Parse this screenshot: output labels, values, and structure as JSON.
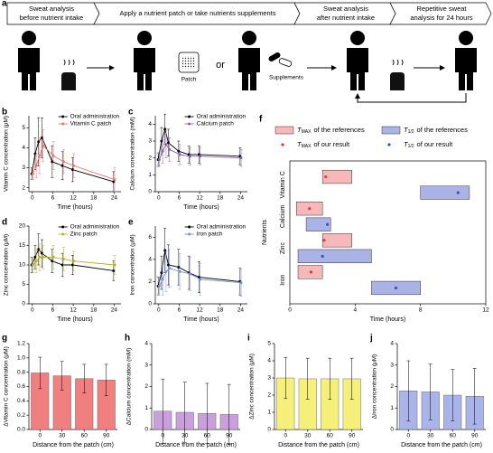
{
  "panel_a": {
    "panel_label": "a",
    "steps": [
      [
        "Sweat analysis",
        "before nutrient intake"
      ],
      [
        "Apply a nutrient patch or take nutrients supplements"
      ],
      [
        "Sweat analysis",
        "after nutrient intake"
      ],
      [
        "Repetitive sweat",
        "analysis for 24 hours"
      ]
    ],
    "patch_label": "Patch",
    "or_label": "or",
    "supplements_label": "Supplements"
  },
  "chart_data": [
    {
      "type": "line",
      "panel_label": "b",
      "xlabel": "Time (hours)",
      "ylabel": "Vitamin C concentration (μM)",
      "x": [
        0,
        1,
        2,
        3,
        6,
        9,
        12,
        24
      ],
      "xlim": [
        -1,
        26
      ],
      "xticks": [
        0,
        6,
        12,
        18,
        24
      ],
      "ylim": [
        1.8,
        5.6
      ],
      "yticks": [
        2,
        3,
        4,
        5
      ],
      "series": [
        {
          "name": "Oral administration",
          "color": "#000000",
          "values": [
            2.7,
            3.7,
            4.3,
            4.5,
            3.3,
            3.1,
            2.9,
            2.3
          ],
          "errors": [
            0.3,
            0.8,
            1.2,
            1.0,
            0.8,
            0.7,
            0.6,
            0.5
          ]
        },
        {
          "name": "Vitamin C patch",
          "color": "#e8746c",
          "values": [
            2.7,
            3.1,
            3.6,
            4.1,
            3.6,
            3.3,
            3.1,
            2.4
          ],
          "errors": [
            0.3,
            0.6,
            0.9,
            0.8,
            0.7,
            0.6,
            0.6,
            0.6
          ]
        }
      ]
    },
    {
      "type": "line",
      "panel_label": "c",
      "xlabel": "Time (hours)",
      "ylabel": "Calcium concentration (mM)",
      "x": [
        0,
        1,
        2,
        3,
        6,
        9,
        12,
        24
      ],
      "xlim": [
        -1,
        26
      ],
      "xticks": [
        0,
        6,
        12,
        18,
        24
      ],
      "ylim": [
        0,
        4.5
      ],
      "yticks": [
        0,
        1,
        2,
        3,
        4
      ],
      "series": [
        {
          "name": "Oral administration",
          "color": "#000000",
          "values": [
            1.9,
            3.0,
            3.7,
            2.9,
            2.4,
            2.2,
            2.2,
            2.1
          ],
          "errors": [
            0.4,
            0.8,
            0.9,
            0.8,
            0.6,
            0.5,
            0.5,
            0.5
          ]
        },
        {
          "name": "Calcium patch",
          "color": "#8a5fb0",
          "values": [
            1.9,
            2.4,
            2.8,
            2.5,
            2.2,
            2.1,
            2.1,
            2.0
          ],
          "errors": [
            0.4,
            0.7,
            0.8,
            0.7,
            0.6,
            0.5,
            0.5,
            0.5
          ]
        }
      ]
    },
    {
      "type": "line",
      "panel_label": "d",
      "xlabel": "Time (hours)",
      "ylabel": "Zinc concentration (μM)",
      "x": [
        0,
        1,
        2,
        3,
        6,
        9,
        12,
        24
      ],
      "xlim": [
        -1,
        26
      ],
      "xticks": [
        0,
        6,
        12,
        18,
        24
      ],
      "ylim": [
        0,
        20
      ],
      "yticks": [
        0,
        5,
        10,
        15,
        20
      ],
      "series": [
        {
          "name": "Oral administration",
          "color": "#000000",
          "values": [
            10,
            12,
            14,
            13,
            11,
            10,
            10,
            8.5
          ],
          "errors": [
            2,
            3,
            4,
            3.5,
            3,
            3,
            2.5,
            2.5
          ]
        },
        {
          "name": "Zinc patch",
          "color": "#b8b020",
          "values": [
            10,
            11,
            12,
            12,
            12,
            11.5,
            11,
            10
          ],
          "errors": [
            2,
            3,
            3.5,
            3,
            3,
            3,
            2.5,
            2.5
          ]
        }
      ]
    },
    {
      "type": "line",
      "panel_label": "e",
      "xlabel": "Time (hours)",
      "ylabel": "Iron concentration (μM)",
      "x": [
        0,
        1,
        2,
        3,
        6,
        9,
        12,
        24
      ],
      "xlim": [
        -1,
        26
      ],
      "xticks": [
        0,
        6,
        12,
        18,
        24
      ],
      "ylim": [
        0,
        7
      ],
      "yticks": [
        0,
        2,
        4,
        6
      ],
      "series": [
        {
          "name": "Oral administration",
          "color": "#000000",
          "values": [
            1.6,
            2.8,
            4.8,
            3.5,
            3.3,
            2.8,
            2.4,
            2.0
          ],
          "errors": [
            0.8,
            1.5,
            2.0,
            1.8,
            1.6,
            1.5,
            1.4,
            1.2
          ]
        },
        {
          "name": "Iron patch",
          "color": "#7b8fd8",
          "values": [
            1.6,
            2.2,
            2.9,
            3.2,
            2.9,
            2.7,
            2.2,
            1.9
          ],
          "errors": [
            0.8,
            1.4,
            1.8,
            1.7,
            1.6,
            1.5,
            1.4,
            1.2
          ]
        }
      ]
    },
    {
      "type": "range",
      "panel_label": "f",
      "xlabel": "Time (hours)",
      "ylabel": "Nutrients",
      "categories": [
        "Vitamin C",
        "Calcium",
        "Zinc",
        "Iron"
      ],
      "xlim": [
        0,
        12
      ],
      "xticks": [
        0,
        4,
        8,
        12
      ],
      "series": [
        {
          "name": {
            "main": "T",
            "sub": "MAX",
            "rest": "of the references"
          },
          "color": "#f6b8b8",
          "starts": [
            2,
            0.4,
            2,
            0.5
          ],
          "ends": [
            3.8,
            2,
            3.8,
            2
          ]
        },
        {
          "name": {
            "main": "T",
            "sub": "1/2",
            "rest": "of the references"
          },
          "color": "#aab3e6",
          "starts": [
            8,
            1,
            0.5,
            5
          ],
          "ends": [
            11,
            2.5,
            5,
            8
          ]
        },
        {
          "name": {
            "main": "T",
            "sub": "MAX",
            "rest": "of our result"
          },
          "color": "#e8343c",
          "values": [
            2.2,
            1.2,
            2.1,
            1.3
          ]
        },
        {
          "name": {
            "main": "T",
            "sub": "1/2",
            "rest": "of our result"
          },
          "color": "#3a4fc0",
          "values": [
            10.3,
            2.3,
            2.0,
            6.5
          ]
        }
      ]
    },
    {
      "type": "bar",
      "panel_label": "g",
      "xlabel": "Distance from the patch (cm)",
      "ylabel": "ΔVitamin C concentration (μM)",
      "categories": [
        "0",
        "30",
        "60",
        "90"
      ],
      "values": [
        0.79,
        0.75,
        0.71,
        0.69
      ],
      "errors": [
        0.22,
        0.2,
        0.2,
        0.22
      ],
      "color": "#f08080",
      "ylim": [
        0,
        1.2
      ],
      "yticks": [
        {
          "value": 0,
          "label": "0.0"
        },
        0.2,
        0.4,
        0.6,
        0.8,
        {
          "value": 1,
          "label": "1.0"
        },
        1.2
      ]
    },
    {
      "type": "bar",
      "panel_label": "h",
      "xlabel": "Distance from the patch (cm)",
      "ylabel": "ΔCalcium concentration (mM)",
      "categories": [
        "0",
        "30",
        "60",
        "90"
      ],
      "values": [
        0.85,
        0.8,
        0.75,
        0.7
      ],
      "errors": [
        1.5,
        1.4,
        1.4,
        1.4
      ],
      "color": "#c9a0dc",
      "ylim": [
        0,
        4
      ],
      "yticks": [
        0,
        1,
        2,
        3,
        4
      ]
    },
    {
      "type": "bar",
      "panel_label": "i",
      "xlabel": "Distance from the patch (cm)",
      "ylabel": "ΔZinc concentration (μM)",
      "categories": [
        "0",
        "30",
        "60",
        "90"
      ],
      "values": [
        3,
        2.95,
        2.95,
        2.95
      ],
      "errors": [
        1.2,
        1.2,
        1.2,
        1.2
      ],
      "color": "#f5f07a",
      "ylim": [
        0,
        5
      ],
      "yticks": [
        0,
        1,
        2,
        3,
        4,
        5
      ]
    },
    {
      "type": "bar",
      "panel_label": "j",
      "xlabel": "Distance from the patch (cm)",
      "ylabel": "ΔIron concentration (μM)",
      "categories": [
        "0",
        "30",
        "60",
        "90"
      ],
      "values": [
        1.8,
        1.75,
        1.6,
        1.55
      ],
      "errors": [
        1.4,
        1.3,
        1.2,
        1.3
      ],
      "color": "#a9b4e8",
      "ylim": [
        0,
        4
      ],
      "yticks": [
        0,
        1,
        2,
        3,
        4
      ]
    }
  ]
}
